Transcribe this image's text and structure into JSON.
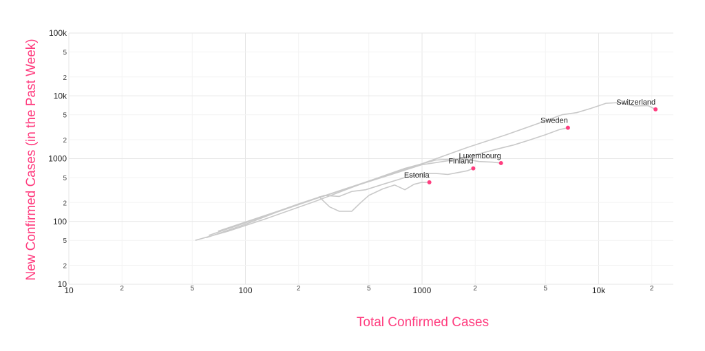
{
  "chart_data": {
    "type": "line",
    "title": "",
    "xlabel": "Total Confirmed Cases",
    "ylabel": "New Confirmed Cases (in the Past Week)",
    "xscale": "log",
    "yscale": "log",
    "xlim": [
      10,
      25000
    ],
    "ylim": [
      10,
      100000
    ],
    "grid": true,
    "legend": "none",
    "colors": {
      "line": "#c9c9c9",
      "point": "#ff3d7f",
      "axis_title": "#ff3d7f"
    },
    "x_major_ticks": [
      {
        "v": 10,
        "label": "10"
      },
      {
        "v": 100,
        "label": "100"
      },
      {
        "v": 1000,
        "label": "1000"
      },
      {
        "v": 10000,
        "label": "10k"
      }
    ],
    "x_minor_ticks": [
      {
        "v": 20,
        "label": "2"
      },
      {
        "v": 50,
        "label": "5"
      },
      {
        "v": 200,
        "label": "2"
      },
      {
        "v": 500,
        "label": "5"
      },
      {
        "v": 2000,
        "label": "2"
      },
      {
        "v": 5000,
        "label": "5"
      },
      {
        "v": 20000,
        "label": "2"
      }
    ],
    "y_major_ticks": [
      {
        "v": 10,
        "label": "10"
      },
      {
        "v": 100,
        "label": "100"
      },
      {
        "v": 1000,
        "label": "1000"
      },
      {
        "v": 10000,
        "label": "10k"
      },
      {
        "v": 100000,
        "label": "100k"
      }
    ],
    "y_minor_ticks": [
      {
        "v": 20,
        "label": "2"
      },
      {
        "v": 50,
        "label": "5"
      },
      {
        "v": 200,
        "label": "2"
      },
      {
        "v": 500,
        "label": "5"
      },
      {
        "v": 2000,
        "label": "2"
      },
      {
        "v": 5000,
        "label": "5"
      },
      {
        "v": 20000,
        "label": "2"
      },
      {
        "v": 50000,
        "label": "5"
      }
    ],
    "series": [
      {
        "name": "Switzerland",
        "x": [
          52,
          80,
          130,
          250,
          500,
          1000,
          1800,
          3000,
          5000,
          6200,
          7500,
          9000,
          11000,
          13000,
          16000,
          19000,
          21000
        ],
        "y": [
          50,
          70,
          110,
          210,
          440,
          830,
          1500,
          2400,
          4000,
          5000,
          5400,
          6300,
          7600,
          7800,
          6900,
          7000,
          6100
        ]
      },
      {
        "name": "Sweden",
        "x": [
          60,
          100,
          150,
          250,
          500,
          1000,
          1500,
          2000,
          2600,
          3300,
          4000,
          5000,
          6000,
          6700
        ],
        "y": [
          55,
          90,
          140,
          230,
          430,
          800,
          950,
          1150,
          1400,
          1650,
          1950,
          2400,
          2900,
          3100
        ]
      },
      {
        "name": "Luxembourg",
        "x": [
          70,
          130,
          260,
          500,
          800,
          1200,
          1700,
          2100,
          2500,
          2800
        ],
        "y": [
          70,
          125,
          240,
          440,
          700,
          950,
          1000,
          900,
          880,
          850
        ]
      },
      {
        "name": "Finland",
        "x": [
          62,
          100,
          200,
          280,
          340,
          400,
          480,
          600,
          800,
          1000,
          1200,
          1400,
          1600,
          1800,
          1950
        ],
        "y": [
          60,
          95,
          190,
          260,
          250,
          300,
          320,
          390,
          500,
          580,
          580,
          560,
          600,
          640,
          700
        ]
      },
      {
        "name": "Estonia",
        "x": [
          260,
          300,
          340,
          400,
          450,
          500,
          600,
          700,
          800,
          900,
          1000,
          1100
        ],
        "y": [
          250,
          170,
          145,
          145,
          200,
          260,
          330,
          380,
          320,
          390,
          420,
          420
        ]
      }
    ]
  }
}
